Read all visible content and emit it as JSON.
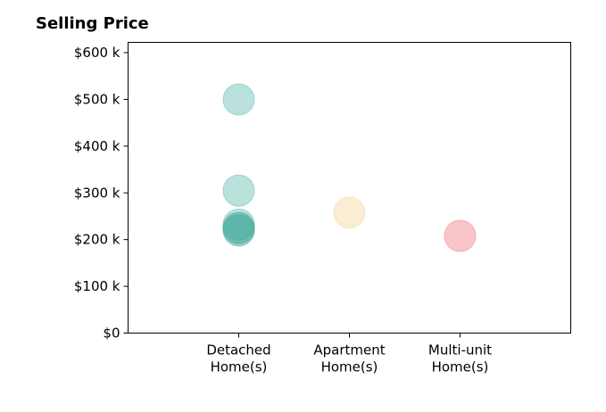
{
  "chart_data": {
    "type": "scatter",
    "title": "Selling Price",
    "xlabel": "",
    "ylabel": "",
    "categories": [
      [
        "Detached",
        "Home(s)"
      ],
      [
        "Apartment",
        "Home(s)"
      ],
      [
        "Multi-unit",
        "Home(s)"
      ]
    ],
    "y_tick_labels": [
      "$0",
      "$100 k",
      "$200 k",
      "$300 k",
      "$400 k",
      "$500 k",
      "$600 k"
    ],
    "y_ticks": [
      0,
      100000,
      200000,
      300000,
      400000,
      500000,
      600000
    ],
    "ylim": [
      0,
      622000
    ],
    "grid": false,
    "points": [
      {
        "category": 0,
        "value": 500000,
        "color": "#76c3b9"
      },
      {
        "category": 0,
        "value": 305000,
        "color": "#76c3b9"
      },
      {
        "category": 0,
        "value": 232000,
        "color": "#76c3b9"
      },
      {
        "category": 0,
        "value": 225000,
        "color": "#3fa899"
      },
      {
        "category": 0,
        "value": 220000,
        "color": "#3fa899"
      },
      {
        "category": 1,
        "value": 258000,
        "color": "#f6dcaa"
      },
      {
        "category": 2,
        "value": 208000,
        "color": "#f08b95"
      }
    ]
  }
}
